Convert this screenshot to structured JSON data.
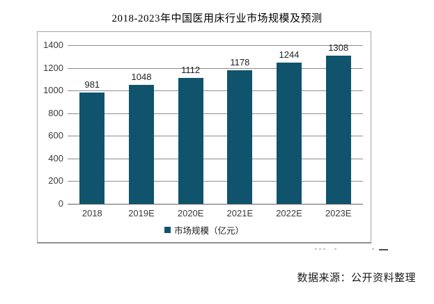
{
  "title": "2018-2023年中国医用床行业市场规模及预测",
  "legend": {
    "label": "市场规模（亿元）",
    "swatch_color": "#10536d"
  },
  "source_note": "数据来源：公开资料整理",
  "colors": {
    "bar": "#10536d",
    "gridline": "#8c8c8c",
    "frame_border": "#a6a6a6",
    "tick_text": "#3a3a3a",
    "value_text": "#1f1f1f"
  },
  "chart_data": {
    "type": "bar",
    "title": "2018-2023年中国医用床行业市场规模及预测",
    "categories": [
      "2018",
      "2019E",
      "2020E",
      "2021E",
      "2022E",
      "2023E"
    ],
    "values": [
      981,
      1048,
      1112,
      1178,
      1244,
      1308
    ],
    "series_name": "市场规模（亿元）",
    "xlabel": "",
    "ylabel": "",
    "ylim": [
      0,
      1400
    ],
    "yticks": [
      0,
      200,
      400,
      600,
      800,
      1000,
      1200,
      1400
    ],
    "grid": true,
    "data_labels": true,
    "legend_position": "bottom",
    "bar_color": "#10536d"
  }
}
